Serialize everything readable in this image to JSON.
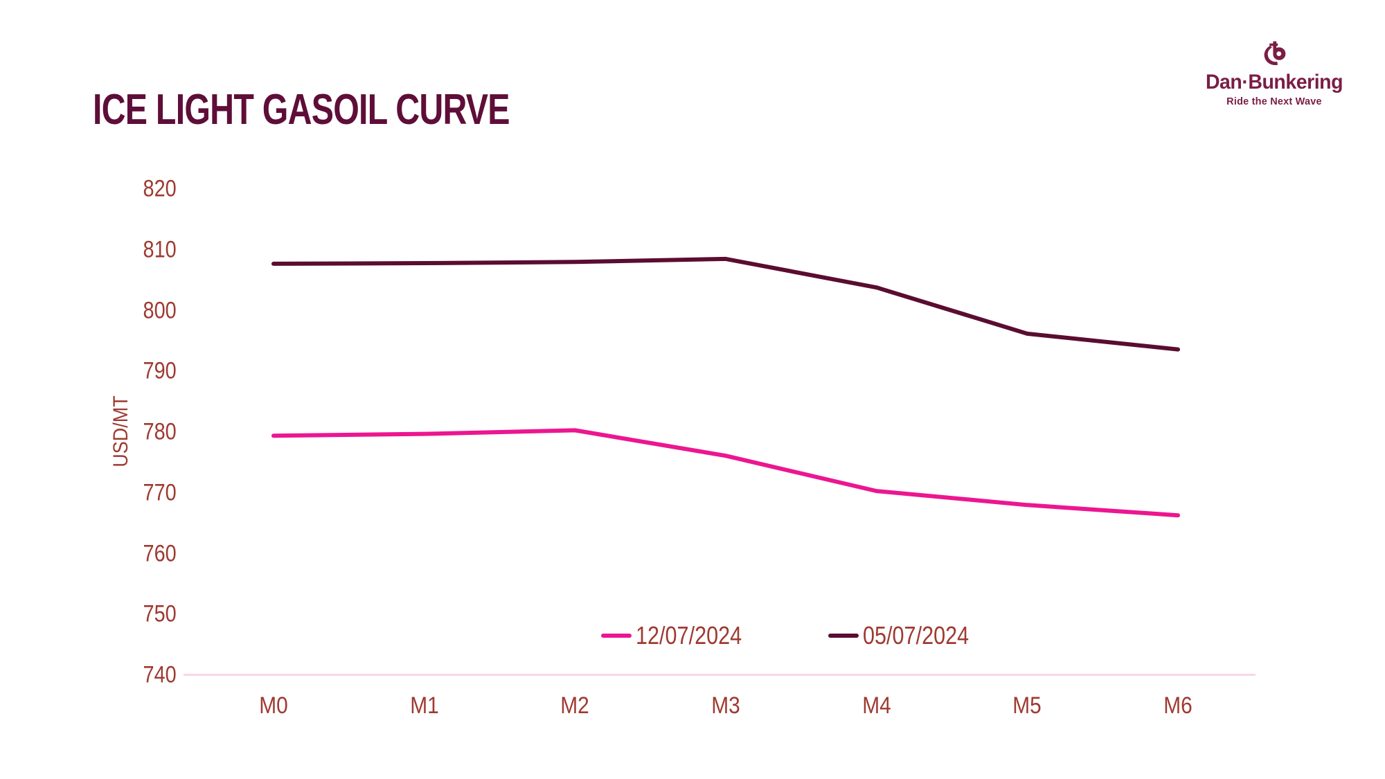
{
  "page": {
    "background": "#FFFFFF"
  },
  "header": {
    "title": "ICE LIGHT GASOIL CURVE",
    "title_color": "#5E0E38"
  },
  "logo": {
    "brand": "Dan·Bunkering",
    "tagline": "Ride the Next Wave",
    "color": "#7A1E46",
    "mark": "anchor-b-icon"
  },
  "chart_data": {
    "type": "line",
    "title": "ICE LIGHT GASOIL CURVE",
    "xlabel": "",
    "ylabel": "USD/MT",
    "categories": [
      "M0",
      "M1",
      "M2",
      "M3",
      "M4",
      "M5",
      "M6"
    ],
    "series": [
      {
        "name": "12/07/2024",
        "color": "#EC1690",
        "values": [
          779.4,
          779.7,
          780.3,
          776.1,
          770.3,
          768.0,
          766.3
        ]
      },
      {
        "name": "05/07/2024",
        "color": "#5A0D30",
        "values": [
          807.7,
          807.8,
          808.0,
          808.5,
          803.8,
          796.2,
          793.6
        ]
      }
    ],
    "ylim": [
      740,
      820
    ],
    "yticks": [
      820,
      810,
      800,
      790,
      780,
      770,
      760,
      750,
      740
    ],
    "grid": false,
    "legend_position": "bottom-center-inside",
    "axis_line_color": "#F8D7E7",
    "tick_color": "#9E3A31",
    "line_width": 6
  }
}
